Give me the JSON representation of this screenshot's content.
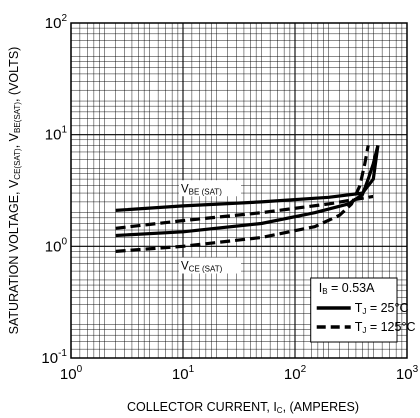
{
  "chart_data": {
    "type": "line",
    "xscale": "log",
    "yscale": "log",
    "xlim": [
      1,
      1000
    ],
    "ylim": [
      0.1,
      100
    ],
    "grid": true,
    "x_ticks": [
      {
        "base": "10",
        "exp": "0"
      },
      {
        "base": "10",
        "exp": "1"
      },
      {
        "base": "10",
        "exp": "2"
      },
      {
        "base": "10",
        "exp": "3"
      }
    ],
    "y_ticks": [
      {
        "base": "10",
        "exp": "-1"
      },
      {
        "base": "10",
        "exp": "0"
      },
      {
        "base": "10",
        "exp": "1"
      },
      {
        "base": "10",
        "exp": "2"
      }
    ],
    "xlabel": {
      "main": "COLLECTOR CURRENT, I",
      "sub": "C",
      "tail": ", (AMPERES)"
    },
    "ylabel": {
      "p1": "SATURATION VOLTAGE, V",
      "s1": "CE(SAT)",
      "p2": ", V",
      "s2": "BE(SAT)",
      "p3": ", (VOLTS)"
    },
    "curve_labels": {
      "vbe": {
        "main": "V",
        "sub": "BE (SAT)"
      },
      "vce": {
        "main": "V",
        "sub": "CE (SAT)"
      }
    },
    "legend": {
      "position": "bottom-right",
      "condition": {
        "main": "I",
        "sub": "B",
        "tail": " = 0.53A"
      },
      "entries": [
        {
          "main": "T",
          "sub": "J",
          "tail": " = 25°C",
          "style": "solid"
        },
        {
          "main": "T",
          "sub": "J",
          "tail": " = 125°C",
          "style": "dashed"
        }
      ]
    },
    "series": [
      {
        "group": "VBE(SAT)",
        "style": "solid",
        "x": [
          2.5,
          10,
          50,
          200,
          400,
          500,
          550
        ],
        "y": [
          2.1,
          2.3,
          2.5,
          2.75,
          3.0,
          4.0,
          8.0
        ]
      },
      {
        "group": "VBE(SAT)",
        "style": "dashed",
        "x": [
          2.5,
          10,
          50,
          200,
          500
        ],
        "y": [
          1.45,
          1.7,
          2.0,
          2.4,
          2.8
        ]
      },
      {
        "group": "VCE(SAT)",
        "style": "solid",
        "x": [
          2.5,
          10,
          50,
          150,
          300,
          400,
          450,
          500,
          550
        ],
        "y": [
          1.25,
          1.35,
          1.6,
          2.0,
          2.4,
          2.9,
          4.0,
          5.5,
          8.0
        ]
      },
      {
        "group": "VCE(SAT)",
        "style": "dashed",
        "x": [
          2.5,
          10,
          50,
          150,
          250,
          320,
          380,
          420,
          450
        ],
        "y": [
          0.9,
          1.0,
          1.2,
          1.5,
          1.9,
          2.4,
          3.5,
          5.5,
          8.0
        ]
      }
    ]
  }
}
